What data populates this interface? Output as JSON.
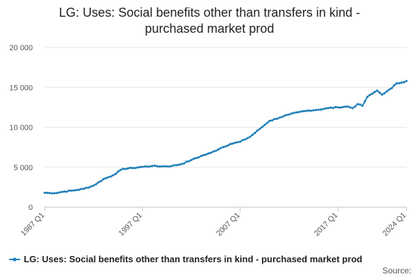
{
  "chart_data": {
    "type": "line",
    "title_lines": [
      "LG: Uses: Social benefits other than transfers in kind -",
      "purchased market prod"
    ],
    "xlabel": "",
    "ylabel": "",
    "ylim": [
      0,
      20000
    ],
    "y_ticks": [
      0,
      5000,
      10000,
      15000,
      20000
    ],
    "y_tick_labels": [
      "0",
      "5 000",
      "10 000",
      "15 000",
      "20 000"
    ],
    "x_range": [
      1987.0,
      2024.0
    ],
    "x_ticks": [
      1987.0,
      1997.0,
      2007.0,
      2017.0,
      2024.0
    ],
    "x_tick_labels": [
      "1987 Q1",
      "1997 Q1",
      "2007 Q1",
      "2017 Q1",
      "2024 Q1"
    ],
    "grid": true,
    "legend_position": "bottom",
    "colors": {
      "series": "#1f7fb8"
    },
    "series": [
      {
        "name": "LG: Uses: Social benefits other than transfers in kind - purchased market prod",
        "anchors": [
          [
            1987.0,
            1800
          ],
          [
            1988.0,
            1750
          ],
          [
            1989.0,
            1950
          ],
          [
            1990.0,
            2100
          ],
          [
            1991.0,
            2300
          ],
          [
            1992.0,
            2700
          ],
          [
            1993.0,
            3500
          ],
          [
            1994.0,
            4000
          ],
          [
            1995.0,
            4800
          ],
          [
            1996.0,
            4900
          ],
          [
            1997.0,
            5050
          ],
          [
            1998.0,
            5150
          ],
          [
            1999.0,
            5100
          ],
          [
            2000.0,
            5150
          ],
          [
            2001.0,
            5400
          ],
          [
            2002.0,
            5900
          ],
          [
            2003.0,
            6400
          ],
          [
            2004.0,
            6800
          ],
          [
            2005.0,
            7400
          ],
          [
            2006.0,
            7900
          ],
          [
            2007.0,
            8200
          ],
          [
            2008.0,
            8800
          ],
          [
            2009.0,
            9800
          ],
          [
            2010.0,
            10800
          ],
          [
            2011.0,
            11200
          ],
          [
            2012.0,
            11600
          ],
          [
            2013.0,
            11900
          ],
          [
            2014.0,
            12100
          ],
          [
            2015.0,
            12200
          ],
          [
            2016.0,
            12400
          ],
          [
            2017.0,
            12500
          ],
          [
            2018.0,
            12600
          ],
          [
            2018.5,
            12400
          ],
          [
            2019.0,
            12900
          ],
          [
            2019.5,
            12700
          ],
          [
            2020.0,
            13800
          ],
          [
            2020.5,
            14200
          ],
          [
            2021.0,
            14600
          ],
          [
            2021.5,
            14100
          ],
          [
            2022.0,
            14500
          ],
          [
            2022.5,
            14900
          ],
          [
            2023.0,
            15500
          ],
          [
            2023.5,
            15600
          ],
          [
            2024.0,
            15800
          ]
        ]
      }
    ]
  },
  "legend": {
    "label": "LG: Uses: Social benefits other than transfers in kind - purchased market prod"
  },
  "credits": {
    "label": "Source:"
  }
}
